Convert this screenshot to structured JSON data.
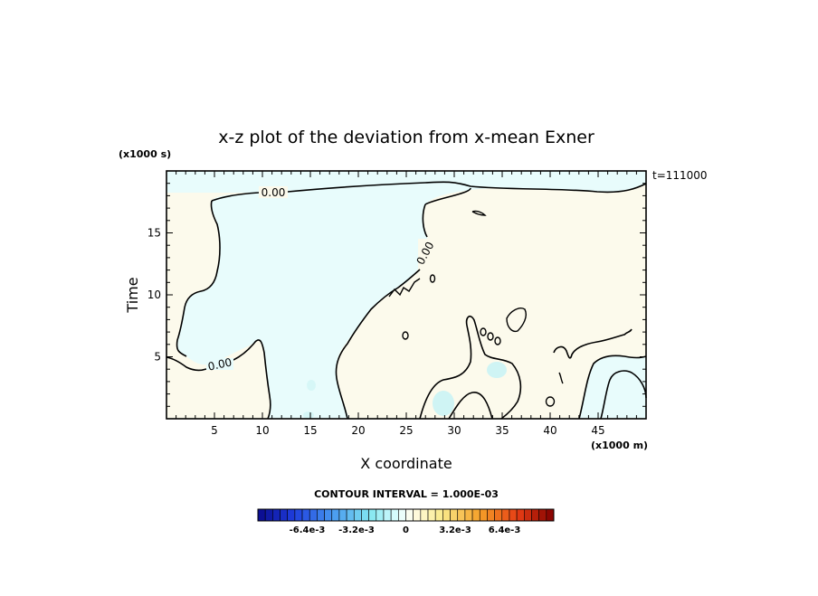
{
  "chart_data": {
    "type": "contour",
    "title": "x-z plot of the deviation from x-mean Exner",
    "xlabel": "X coordinate",
    "ylabel": "Time",
    "x_unit": "(x1000 m)",
    "y_unit": "(x1000 s)",
    "time_stamp": "t=111000",
    "xlim": [
      0,
      50
    ],
    "ylim": [
      0,
      20
    ],
    "x_ticks": [
      5,
      10,
      15,
      20,
      25,
      30,
      35,
      40,
      45
    ],
    "y_ticks": [
      5,
      10,
      15
    ],
    "contour_label": "0.00",
    "contour_interval_text": "CONTOUR INTERVAL = 1.000E-03",
    "colorbar": {
      "ticks": [
        {
          "label": "-6.4e-3",
          "value": -0.0064
        },
        {
          "label": "-3.2e-3",
          "value": -0.0032
        },
        {
          "label": "0",
          "value": 0
        },
        {
          "label": "3.2e-3",
          "value": 0.0032
        },
        {
          "label": "6.4e-3",
          "value": 0.0064
        }
      ],
      "vmin": -0.0096,
      "vmax": 0.0096
    },
    "colors": {
      "negative_fill": "#e8fcfc",
      "positive_fill": "#fcfaec",
      "weak_negative_blob": "#d0f6f6"
    }
  }
}
